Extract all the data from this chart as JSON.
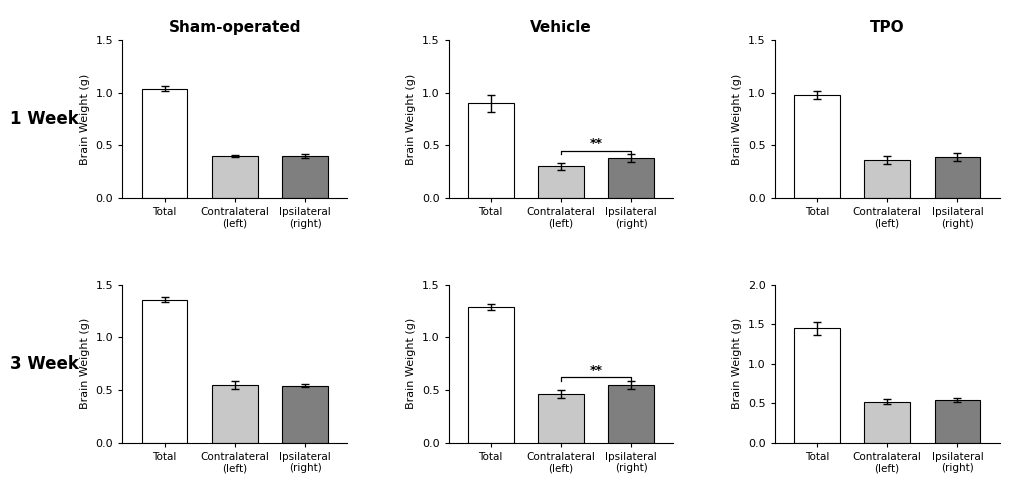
{
  "title_row1": [
    "Sham-operated",
    "Vehicle",
    "TPO"
  ],
  "row_labels": [
    "1 Week",
    "3 Week"
  ],
  "panels": {
    "row0_col0": {
      "bars": [
        1.04,
        0.4,
        0.4
      ],
      "errors": [
        0.025,
        0.012,
        0.015
      ],
      "ylim": [
        0,
        1.5
      ],
      "yticks": [
        0.0,
        0.5,
        1.0,
        1.5
      ],
      "sig_bracket": null
    },
    "row0_col1": {
      "bars": [
        0.9,
        0.3,
        0.38
      ],
      "errors": [
        0.08,
        0.03,
        0.04
      ],
      "ylim": [
        0,
        1.5
      ],
      "yticks": [
        0.0,
        0.5,
        1.0,
        1.5
      ],
      "sig_bracket": [
        1,
        2
      ]
    },
    "row0_col2": {
      "bars": [
        0.98,
        0.36,
        0.39
      ],
      "errors": [
        0.04,
        0.04,
        0.04
      ],
      "ylim": [
        0,
        1.5
      ],
      "yticks": [
        0.0,
        0.5,
        1.0,
        1.5
      ],
      "sig_bracket": null
    },
    "row1_col0": {
      "bars": [
        1.36,
        0.55,
        0.54
      ],
      "errors": [
        0.02,
        0.04,
        0.015
      ],
      "ylim": [
        0,
        1.5
      ],
      "yticks": [
        0.0,
        0.5,
        1.0,
        1.5
      ],
      "sig_bracket": null
    },
    "row1_col1": {
      "bars": [
        1.29,
        0.46,
        0.55
      ],
      "errors": [
        0.03,
        0.04,
        0.04
      ],
      "ylim": [
        0,
        1.5
      ],
      "yticks": [
        0.0,
        0.5,
        1.0,
        1.5
      ],
      "sig_bracket": [
        1,
        2
      ]
    },
    "row1_col2": {
      "bars": [
        1.45,
        0.52,
        0.54
      ],
      "errors": [
        0.08,
        0.03,
        0.02
      ],
      "ylim": [
        0,
        2.0
      ],
      "yticks": [
        0.0,
        0.5,
        1.0,
        1.5,
        2.0
      ],
      "sig_bracket": null
    }
  },
  "bar_colors": [
    "#ffffff",
    "#c8c8c8",
    "#7f7f7f"
  ],
  "bar_edgecolor": "#000000",
  "xlabel_items": [
    "Total",
    "Contralateral\n(left)",
    "Ipsilateral\n(right)"
  ],
  "ylabel": "Brain Weight (g)",
  "background_color": "#ffffff",
  "sig_label": "**"
}
